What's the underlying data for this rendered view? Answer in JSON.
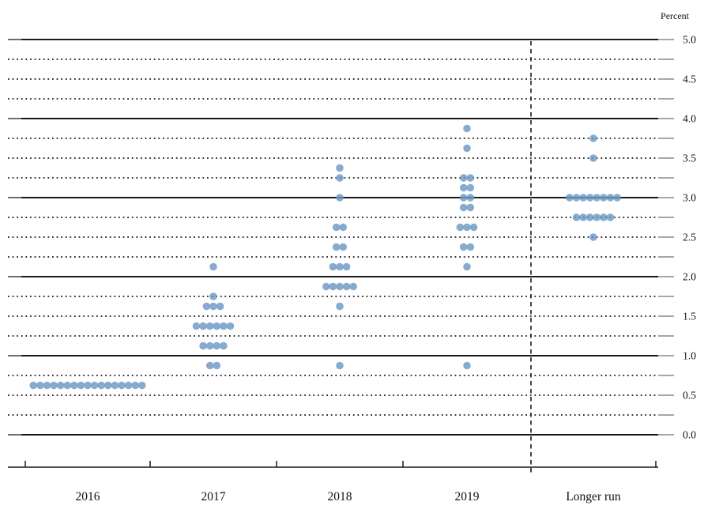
{
  "chart_data": {
    "type": "scatter",
    "subtype": "fomc-dot-plot",
    "title": "",
    "ylabel": "Percent",
    "ylim": [
      0.0,
      5.0
    ],
    "gridline_step": 0.25,
    "solid_line_at_integers": true,
    "ytick_label_step": 0.5,
    "ytick_labels": [
      "5.0",
      "4.5",
      "4.0",
      "3.5",
      "3.0",
      "2.5",
      "2.0",
      "1.5",
      "1.0",
      "0.5",
      "0.0"
    ],
    "legend": "none",
    "categories": [
      "2016",
      "2017",
      "2018",
      "2019",
      "Longer run"
    ],
    "dot_rows": [
      {
        "category": "2016",
        "value": 0.625,
        "count": 17
      },
      {
        "category": "2017",
        "value": 2.125,
        "count": 1
      },
      {
        "category": "2017",
        "value": 1.75,
        "count": 1
      },
      {
        "category": "2017",
        "value": 1.625,
        "count": 3
      },
      {
        "category": "2017",
        "value": 1.375,
        "count": 6
      },
      {
        "category": "2017",
        "value": 1.125,
        "count": 4
      },
      {
        "category": "2017",
        "value": 0.875,
        "count": 2
      },
      {
        "category": "2018",
        "value": 3.375,
        "count": 1
      },
      {
        "category": "2018",
        "value": 3.25,
        "count": 1
      },
      {
        "category": "2018",
        "value": 3.0,
        "count": 1
      },
      {
        "category": "2018",
        "value": 2.625,
        "count": 2
      },
      {
        "category": "2018",
        "value": 2.375,
        "count": 2
      },
      {
        "category": "2018",
        "value": 2.125,
        "count": 3
      },
      {
        "category": "2018",
        "value": 1.875,
        "count": 5
      },
      {
        "category": "2018",
        "value": 1.625,
        "count": 1
      },
      {
        "category": "2018",
        "value": 0.875,
        "count": 1
      },
      {
        "category": "2019",
        "value": 3.875,
        "count": 1
      },
      {
        "category": "2019",
        "value": 3.625,
        "count": 1
      },
      {
        "category": "2019",
        "value": 3.25,
        "count": 2
      },
      {
        "category": "2019",
        "value": 3.125,
        "count": 2
      },
      {
        "category": "2019",
        "value": 3.0,
        "count": 2
      },
      {
        "category": "2019",
        "value": 2.875,
        "count": 2
      },
      {
        "category": "2019",
        "value": 2.625,
        "count": 3
      },
      {
        "category": "2019",
        "value": 2.375,
        "count": 2
      },
      {
        "category": "2019",
        "value": 2.125,
        "count": 1
      },
      {
        "category": "2019",
        "value": 0.875,
        "count": 1
      },
      {
        "category": "Longer run",
        "value": 3.75,
        "count": 1
      },
      {
        "category": "Longer run",
        "value": 3.5,
        "count": 1
      },
      {
        "category": "Longer run",
        "value": 3.0,
        "count": 8
      },
      {
        "category": "Longer run",
        "value": 2.75,
        "count": 6
      },
      {
        "category": "Longer run",
        "value": 2.5,
        "count": 1
      }
    ],
    "colors": {
      "dot_fill": "#6C98C4",
      "dot_opacity": 0.82,
      "line": "#1a1a1a",
      "tick_gray": "#8a8a8a",
      "background": "#ffffff"
    },
    "separator": {
      "style": "vertical-dashed-line",
      "between": [
        "2019",
        "Longer run"
      ]
    }
  }
}
